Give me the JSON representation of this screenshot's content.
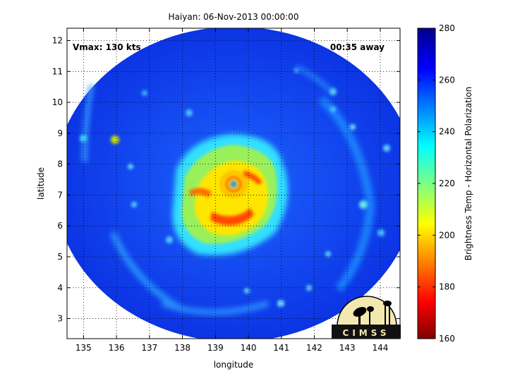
{
  "chart_data": {
    "type": "heatmap",
    "title": "Haiyan: 06-Nov-2013 00:00:00",
    "xlabel": "longitude",
    "ylabel": "latitude",
    "xlim": [
      134.5,
      144.6
    ],
    "ylim": [
      2.35,
      12.4
    ],
    "xticks": [
      135,
      136,
      137,
      138,
      139,
      140,
      141,
      142,
      143,
      144
    ],
    "yticks": [
      3,
      4,
      5,
      6,
      7,
      8,
      9,
      10,
      11,
      12
    ],
    "grid": true,
    "swath": {
      "center_lon": 139.6,
      "center_lat": 7.35,
      "radius_deg_lon": 5.5,
      "radius_deg_lat": 5.1
    },
    "storm_center": {
      "lon": 139.55,
      "lat": 7.35
    },
    "colorbar": {
      "label": "Brightness Temp - Horizontal Polarization",
      "min": 160,
      "max": 280,
      "ticks": [
        160,
        180,
        200,
        220,
        240,
        260,
        280
      ],
      "colormap": "jet"
    },
    "annotations": {
      "vmax": "Vmax: 130 kts",
      "time_away": "00:35 away"
    },
    "logo_text": "CIMSS"
  }
}
